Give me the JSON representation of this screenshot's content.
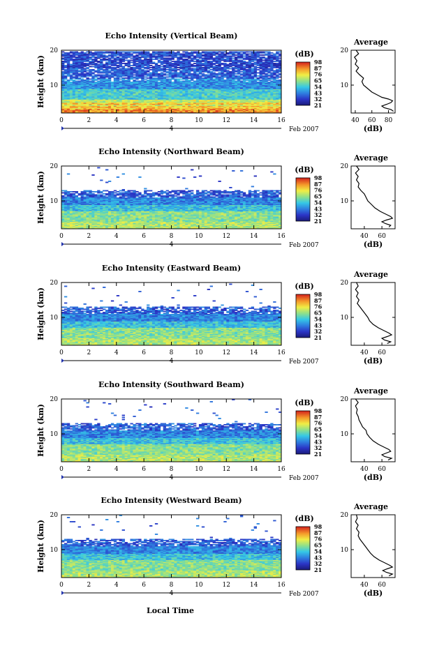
{
  "figure": {
    "xlabel": "Local Time",
    "date_day": "4",
    "date_month_year": "Feb 2007",
    "ylabel": "Height (km)",
    "avg_title": "Average",
    "avg_xlabel": "(dB)",
    "colorbar_label": "(dB)"
  },
  "chart_data": [
    {
      "type": "heatmap",
      "title": "Echo Intensity (Vertical Beam)",
      "xlabel": "Local Time",
      "ylabel": "Height (km)",
      "xlim": [
        0,
        16
      ],
      "ylim": [
        2,
        20
      ],
      "xticks": [
        0,
        2,
        4,
        6,
        8,
        10,
        12,
        14,
        16
      ],
      "yticks": [
        10,
        20
      ],
      "colorbar": {
        "label": "(dB)",
        "ticks": [
          21,
          32,
          43,
          54,
          65,
          76,
          87,
          98
        ]
      },
      "profile": {
        "title": "Average",
        "xlabel": "(dB)",
        "xlim": [
          35,
          88
        ],
        "xticks": [
          40,
          60,
          80
        ],
        "yticks": [
          10,
          20
        ],
        "heights": [
          2.5,
          3,
          3.5,
          4,
          4.5,
          5,
          5.5,
          6,
          6.5,
          7,
          8,
          9,
          10,
          11,
          12,
          13,
          14,
          15,
          16,
          17,
          18,
          19,
          20
        ],
        "values": [
          86,
          83,
          75,
          72,
          78,
          83,
          85,
          80,
          72,
          68,
          60,
          55,
          50,
          48,
          50,
          45,
          41,
          44,
          40,
          42,
          39,
          44,
          41
        ]
      }
    },
    {
      "type": "heatmap",
      "title": "Echo Intensity (Northward Beam)",
      "xlabel": "Local Time",
      "ylabel": "Height (km)",
      "xlim": [
        0,
        16
      ],
      "ylim": [
        2,
        20
      ],
      "xticks": [
        0,
        2,
        4,
        6,
        8,
        10,
        12,
        14,
        16
      ],
      "yticks": [
        10,
        20
      ],
      "colorbar": {
        "label": "(dB)",
        "ticks": [
          21,
          32,
          43,
          54,
          65,
          76,
          87,
          98
        ]
      },
      "profile": {
        "title": "Average",
        "xlabel": "(dB)",
        "xlim": [
          25,
          75
        ],
        "xticks": [
          40,
          60
        ],
        "yticks": [
          10,
          20
        ],
        "heights": [
          2.5,
          3,
          3.5,
          4,
          4.5,
          5,
          5.5,
          6,
          6.5,
          7,
          8,
          9,
          10,
          11,
          12,
          13,
          14,
          15,
          16,
          17,
          18,
          19,
          20
        ],
        "values": [
          68,
          70,
          64,
          60,
          65,
          72,
          70,
          66,
          62,
          58,
          52,
          48,
          44,
          42,
          40,
          36,
          33,
          34,
          31,
          33,
          30,
          34,
          31
        ]
      }
    },
    {
      "type": "heatmap",
      "title": "Echo Intensity (Eastward Beam)",
      "xlabel": "Local Time",
      "ylabel": "Height (km)",
      "xlim": [
        0,
        16
      ],
      "ylim": [
        2,
        20
      ],
      "xticks": [
        0,
        2,
        4,
        6,
        8,
        10,
        12,
        14,
        16
      ],
      "yticks": [
        10,
        20
      ],
      "colorbar": {
        "label": "(dB)",
        "ticks": [
          21,
          32,
          43,
          54,
          65,
          76,
          87,
          98
        ]
      },
      "profile": {
        "title": "Average",
        "xlabel": "(dB)",
        "xlim": [
          25,
          75
        ],
        "xticks": [
          40,
          60
        ],
        "yticks": [
          10,
          20
        ],
        "heights": [
          2.5,
          3,
          3.5,
          4,
          4.5,
          5,
          5.5,
          6,
          6.5,
          7,
          8,
          9,
          10,
          11,
          12,
          13,
          14,
          15,
          16,
          17,
          18,
          19,
          20
        ],
        "values": [
          66,
          70,
          63,
          60,
          66,
          71,
          68,
          64,
          60,
          56,
          50,
          46,
          44,
          41,
          38,
          35,
          32,
          34,
          31,
          33,
          30,
          33,
          31
        ]
      }
    },
    {
      "type": "heatmap",
      "title": "Echo Intensity (Southward Beam)",
      "xlabel": "Local Time",
      "ylabel": "Height (km)",
      "xlim": [
        0,
        16
      ],
      "ylim": [
        2,
        20
      ],
      "xticks": [
        0,
        2,
        4,
        6,
        8,
        10,
        12,
        14,
        16
      ],
      "yticks": [
        10,
        20
      ],
      "colorbar": {
        "label": "(dB)",
        "ticks": [
          21,
          32,
          43,
          54,
          65,
          76,
          87,
          98
        ]
      },
      "profile": {
        "title": "Average",
        "xlabel": "(dB)",
        "xlim": [
          25,
          75
        ],
        "xticks": [
          40,
          60
        ],
        "yticks": [
          10,
          20
        ],
        "heights": [
          2.5,
          3,
          3.5,
          4,
          4.5,
          5,
          5.5,
          6,
          6.5,
          7,
          8,
          9,
          10,
          11,
          12,
          13,
          14,
          15,
          16,
          17,
          18,
          19,
          20
        ],
        "values": [
          67,
          71,
          63,
          60,
          65,
          70,
          68,
          64,
          60,
          56,
          50,
          46,
          43,
          42,
          38,
          36,
          34,
          33,
          31,
          32,
          30,
          33,
          30
        ]
      }
    },
    {
      "type": "heatmap",
      "title": "Echo Intensity (Westward Beam)",
      "xlabel": "Local Time",
      "ylabel": "Height (km)",
      "xlim": [
        0,
        16
      ],
      "ylim": [
        2,
        20
      ],
      "xticks": [
        0,
        2,
        4,
        6,
        8,
        10,
        12,
        14,
        16
      ],
      "yticks": [
        10,
        20
      ],
      "colorbar": {
        "label": "(dB)",
        "ticks": [
          21,
          32,
          43,
          54,
          65,
          76,
          87,
          98
        ]
      },
      "profile": {
        "title": "Average",
        "xlabel": "(dB)",
        "xlim": [
          25,
          75
        ],
        "xticks": [
          40,
          60
        ],
        "yticks": [
          10,
          20
        ],
        "heights": [
          2.5,
          3,
          3.5,
          4,
          4.5,
          5,
          5.5,
          6,
          6.5,
          7,
          8,
          9,
          10,
          11,
          12,
          13,
          14,
          15,
          16,
          17,
          18,
          19,
          20
        ],
        "values": [
          68,
          72,
          65,
          61,
          66,
          72,
          69,
          65,
          61,
          57,
          51,
          47,
          44,
          41,
          38,
          35,
          33,
          34,
          31,
          33,
          30,
          32,
          31
        ]
      }
    }
  ]
}
